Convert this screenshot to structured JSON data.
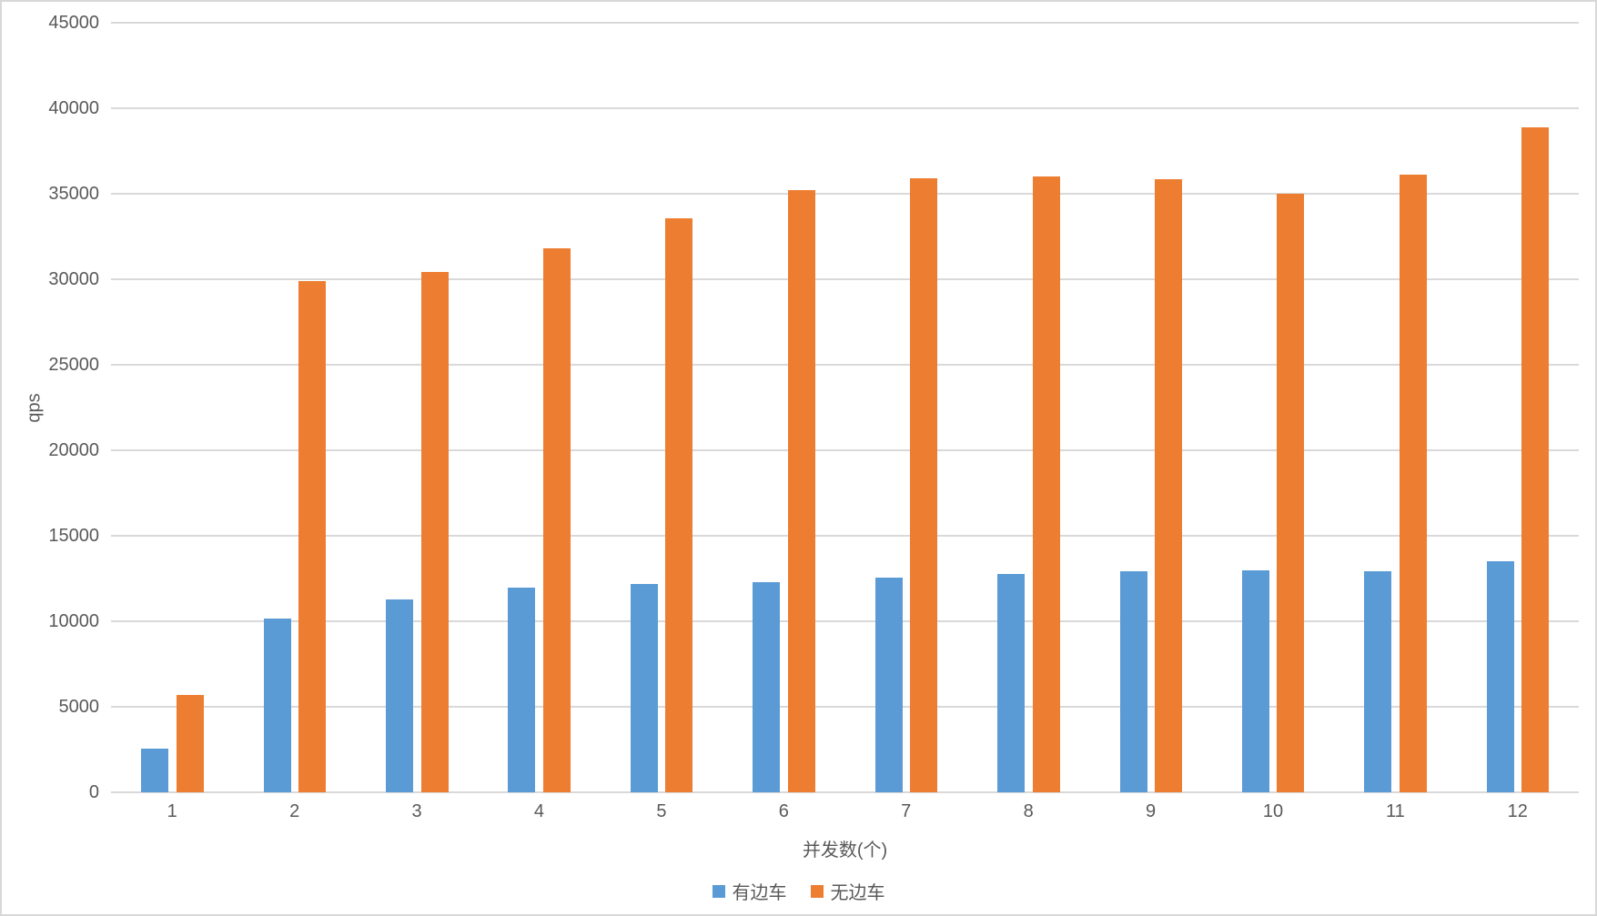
{
  "chart_data": {
    "type": "bar",
    "title": "",
    "xlabel": "并发数(个)",
    "ylabel": "qps",
    "categories": [
      "1",
      "2",
      "3",
      "4",
      "5",
      "6",
      "7",
      "8",
      "9",
      "10",
      "11",
      "12"
    ],
    "series": [
      {
        "name": "有边车",
        "color": "#5b9bd5",
        "values": [
          2550,
          10150,
          11300,
          11950,
          12200,
          12300,
          12550,
          12750,
          12900,
          13000,
          12900,
          13500
        ]
      },
      {
        "name": "无边车",
        "color": "#ed7d31",
        "values": [
          5700,
          29900,
          30450,
          31800,
          33550,
          35200,
          35900,
          36000,
          35850,
          35000,
          36100,
          38900
        ]
      }
    ],
    "ylim": [
      0,
      45000
    ],
    "y_ticks": [
      0,
      5000,
      10000,
      15000,
      20000,
      25000,
      30000,
      35000,
      40000,
      45000
    ],
    "grid": true,
    "legend_position": "bottom",
    "colors": {
      "gridline": "#d9d9d9",
      "axis_text": "#595959",
      "frame_border": "#d8d8d8",
      "background": "#ffffff"
    }
  }
}
